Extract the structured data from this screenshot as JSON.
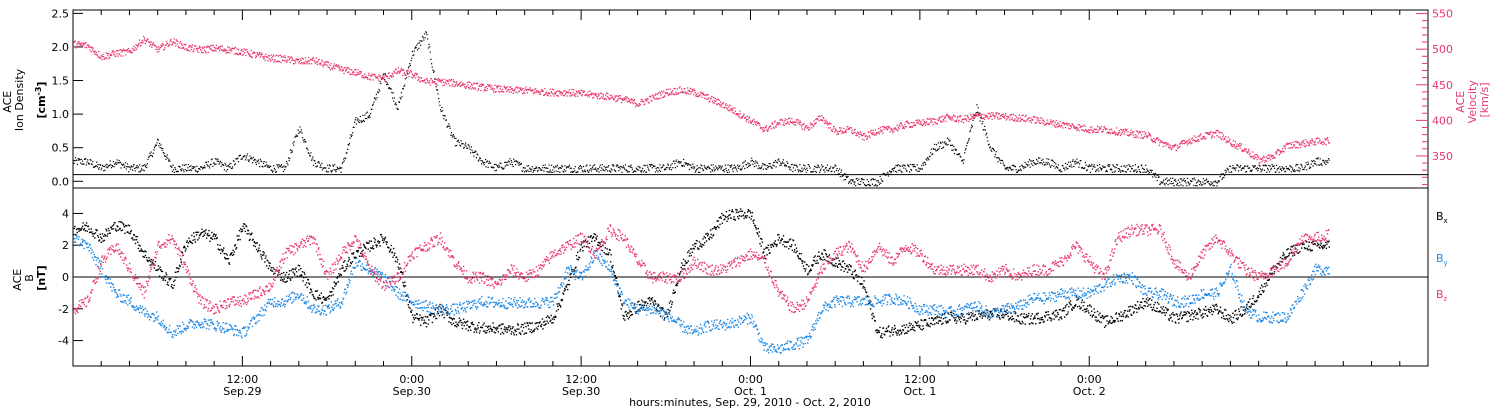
{
  "chart_data": [
    {
      "type": "scatter",
      "title": "",
      "xlabel": "",
      "ylabel": "ACE Ion Density [cm-3]",
      "ylabel_lines": [
        "ACE",
        "Ion Density",
        "[cm",
        "-3",
        "]"
      ],
      "y2label": "ACE Velocity [km/s]",
      "y2label_lines": [
        "ACE",
        "Velocity",
        "[km/s]"
      ],
      "xlim_hours": [
        0,
        96
      ],
      "ylim": [
        -0.1,
        2.55
      ],
      "y2lim": [
        305,
        555
      ],
      "yticks": [
        "0.0",
        "0.5",
        "1.0",
        "1.5",
        "2.0",
        "2.5"
      ],
      "yticks_values": [
        0.0,
        0.5,
        1.0,
        1.5,
        2.0,
        2.5
      ],
      "y2ticks": [
        "350",
        "400",
        "450",
        "500",
        "550"
      ],
      "y2ticks_values": [
        350,
        400,
        450,
        500,
        550
      ],
      "reference_line": 0.1,
      "series": [
        {
          "name": "Ion Density",
          "axis": "left",
          "color": "#000000",
          "x_hours": [
            0,
            1,
            2,
            3,
            4,
            5,
            6,
            7,
            8,
            9,
            10,
            11,
            12,
            13,
            14,
            15,
            16,
            17,
            18,
            19,
            20,
            21,
            22,
            23,
            24,
            25,
            26,
            27,
            28,
            29,
            30,
            31,
            32,
            33,
            34,
            35,
            36,
            37,
            38,
            39,
            40,
            41,
            42,
            43,
            44,
            45,
            46,
            47,
            48,
            49,
            50,
            51,
            52,
            53,
            54,
            55,
            56,
            57,
            58,
            59,
            60,
            61,
            62,
            63,
            64,
            65,
            66,
            67,
            68,
            69,
            70,
            71,
            72,
            73,
            74,
            75,
            76,
            77,
            78,
            79,
            80,
            81,
            82,
            83,
            84,
            85,
            86,
            87,
            88,
            89
          ],
          "values": [
            0.3,
            0.3,
            0.2,
            0.3,
            0.2,
            0.2,
            0.6,
            0.2,
            0.2,
            0.2,
            0.3,
            0.2,
            0.4,
            0.3,
            0.2,
            0.2,
            0.8,
            0.3,
            0.2,
            0.2,
            0.9,
            1.0,
            1.6,
            1.1,
            1.9,
            2.2,
            1.1,
            0.6,
            0.5,
            0.3,
            0.2,
            0.3,
            0.2,
            0.2,
            0.2,
            0.2,
            0.2,
            0.2,
            0.2,
            0.2,
            0.2,
            0.2,
            0.2,
            0.3,
            0.2,
            0.2,
            0.2,
            0.2,
            0.3,
            0.2,
            0.3,
            0.2,
            0.2,
            0.2,
            0.2,
            0.0,
            0.0,
            0.0,
            0.2,
            0.2,
            0.2,
            0.5,
            0.6,
            0.3,
            1.1,
            0.5,
            0.2,
            0.2,
            0.3,
            0.3,
            0.2,
            0.3,
            0.2,
            0.2,
            0.2,
            0.2,
            0.2,
            0.0,
            0.0,
            0.0,
            0.0,
            0.0,
            0.2,
            0.2,
            0.2,
            0.2,
            0.2,
            0.2,
            0.3,
            0.3
          ]
        },
        {
          "name": "Velocity",
          "axis": "right",
          "color": "#e8386b",
          "x_hours": [
            0,
            1,
            2,
            3,
            4,
            5,
            6,
            7,
            8,
            9,
            10,
            11,
            12,
            13,
            14,
            15,
            16,
            17,
            18,
            19,
            20,
            21,
            22,
            23,
            24,
            25,
            26,
            27,
            28,
            29,
            30,
            31,
            32,
            33,
            34,
            35,
            36,
            37,
            38,
            39,
            40,
            41,
            42,
            43,
            44,
            45,
            46,
            47,
            48,
            49,
            50,
            51,
            52,
            53,
            54,
            55,
            56,
            57,
            58,
            59,
            60,
            61,
            62,
            63,
            64,
            65,
            66,
            67,
            68,
            69,
            70,
            71,
            72,
            73,
            74,
            75,
            76,
            77,
            78,
            79,
            80,
            81,
            82,
            83,
            84,
            85,
            86,
            87,
            88,
            89
          ],
          "values": [
            508,
            506,
            490,
            495,
            497,
            515,
            500,
            512,
            503,
            500,
            502,
            500,
            497,
            492,
            488,
            487,
            483,
            485,
            478,
            472,
            468,
            462,
            460,
            470,
            465,
            455,
            455,
            453,
            450,
            447,
            445,
            443,
            443,
            441,
            440,
            440,
            438,
            436,
            434,
            430,
            424,
            432,
            440,
            443,
            440,
            432,
            423,
            412,
            400,
            388,
            398,
            400,
            390,
            405,
            385,
            388,
            377,
            387,
            388,
            395,
            397,
            400,
            405,
            402,
            407,
            407,
            406,
            404,
            402,
            398,
            395,
            392,
            388,
            388,
            385,
            382,
            380,
            370,
            362,
            372,
            378,
            383,
            370,
            360,
            345,
            350,
            365,
            368,
            371,
            372
          ]
        }
      ]
    },
    {
      "type": "scatter",
      "title": "",
      "xlabel": "hours:minutes, Sep. 29, 2010 - Oct. 2, 2010",
      "ylabel": "ACE B [nT]",
      "ylabel_lines": [
        "ACE",
        "B",
        "[nT]"
      ],
      "xlim_hours": [
        0,
        96
      ],
      "ylim": [
        -5.6,
        5.6
      ],
      "yticks": [
        "4",
        "2",
        "0",
        "-2",
        "-4"
      ],
      "yticks_values": [
        4,
        2,
        0,
        -2,
        -4
      ],
      "reference_line": 0,
      "legend_position": "right",
      "x_ticks": [
        {
          "hour": 12,
          "time": "12:00",
          "date": "Sep.29"
        },
        {
          "hour": 24,
          "time": "0:00",
          "date": "Sep.30"
        },
        {
          "hour": 36,
          "time": "12:00",
          "date": "Sep.30"
        },
        {
          "hour": 48,
          "time": "0:00",
          "date": "Oct. 1"
        },
        {
          "hour": 60,
          "time": "12:00",
          "date": "Oct. 1"
        },
        {
          "hour": 72,
          "time": "0:00",
          "date": "Oct. 2"
        }
      ],
      "series": [
        {
          "name": "Bx",
          "label_main": "B",
          "label_sub": "x",
          "color": "#000000",
          "x_hours": [
            0,
            1,
            2,
            3,
            4,
            5,
            6,
            7,
            8,
            9,
            10,
            11,
            12,
            13,
            14,
            15,
            16,
            17,
            18,
            19,
            20,
            21,
            22,
            23,
            24,
            25,
            26,
            27,
            28,
            29,
            30,
            31,
            32,
            33,
            34,
            35,
            36,
            37,
            38,
            39,
            40,
            41,
            42,
            43,
            44,
            45,
            46,
            47,
            48,
            49,
            50,
            51,
            52,
            53,
            54,
            55,
            56,
            57,
            58,
            59,
            60,
            61,
            62,
            63,
            64,
            65,
            66,
            67,
            68,
            69,
            70,
            71,
            72,
            73,
            74,
            75,
            76,
            77,
            78,
            79,
            80,
            81,
            82,
            83,
            84,
            85,
            86,
            87,
            88,
            89
          ],
          "values": [
            3.0,
            3.2,
            2.5,
            3.3,
            3.0,
            1.5,
            0.5,
            -0.5,
            2.2,
            2.8,
            2.5,
            1.0,
            3.2,
            2.0,
            0.5,
            0.0,
            0.5,
            -1.0,
            -1.5,
            0.5,
            1.5,
            2.0,
            2.5,
            1.0,
            -2.5,
            -2.8,
            -2.0,
            -2.8,
            -3.0,
            -3.2,
            -3.2,
            -3.3,
            -3.2,
            -3.0,
            -2.5,
            -0.5,
            2.0,
            2.5,
            1.5,
            -2.5,
            -1.8,
            -1.5,
            -2.5,
            0.5,
            2.0,
            2.5,
            3.8,
            4.0,
            4.0,
            1.5,
            2.5,
            2.0,
            0.5,
            1.5,
            1.0,
            0.5,
            -0.5,
            -3.5,
            -3.3,
            -3.2,
            -3.0,
            -2.8,
            -2.5,
            -2.6,
            -2.4,
            -2.3,
            -2.3,
            -2.6,
            -2.6,
            -2.4,
            -2.3,
            -1.5,
            -2.0,
            -2.8,
            -2.5,
            -2.0,
            -1.5,
            -2.0,
            -2.6,
            -2.4,
            -2.2,
            -2.0,
            -2.6,
            -2.0,
            -1.0,
            0.5,
            1.5,
            2.0,
            2.0,
            2.0
          ]
        },
        {
          "name": "By",
          "label_main": "B",
          "label_sub": "y",
          "color": "#1e88e5",
          "x_hours": [
            0,
            1,
            2,
            3,
            4,
            5,
            6,
            7,
            8,
            9,
            10,
            11,
            12,
            13,
            14,
            15,
            16,
            17,
            18,
            19,
            20,
            21,
            22,
            23,
            24,
            25,
            26,
            27,
            28,
            29,
            30,
            31,
            32,
            33,
            34,
            35,
            36,
            37,
            38,
            39,
            40,
            41,
            42,
            43,
            44,
            45,
            46,
            47,
            48,
            49,
            50,
            51,
            52,
            53,
            54,
            55,
            56,
            57,
            58,
            59,
            60,
            61,
            62,
            63,
            64,
            65,
            66,
            67,
            68,
            69,
            70,
            71,
            72,
            73,
            74,
            75,
            76,
            77,
            78,
            79,
            80,
            81,
            82,
            83,
            84,
            85,
            86,
            87,
            88,
            89
          ],
          "values": [
            2.5,
            2.0,
            0.5,
            -1.0,
            -1.5,
            -2.2,
            -2.5,
            -3.5,
            -3.0,
            -2.8,
            -3.0,
            -3.2,
            -3.5,
            -2.5,
            -1.5,
            -1.5,
            -1.0,
            -2.0,
            -2.0,
            -1.5,
            1.0,
            0.5,
            0.0,
            -1.0,
            -1.5,
            -1.8,
            -2.0,
            -2.0,
            -1.8,
            -1.5,
            -1.6,
            -1.6,
            -1.6,
            -1.6,
            -1.5,
            0.5,
            0.0,
            1.5,
            0.5,
            -1.5,
            -2.0,
            -2.0,
            -2.3,
            -3.0,
            -3.5,
            -3.0,
            -3.0,
            -2.8,
            -2.5,
            -4.5,
            -4.5,
            -4.2,
            -4.0,
            -2.0,
            -1.5,
            -1.5,
            -1.5,
            -1.5,
            -1.3,
            -1.5,
            -2.0,
            -2.0,
            -2.2,
            -2.0,
            -1.8,
            -2.3,
            -2.0,
            -1.8,
            -1.3,
            -1.3,
            -1.0,
            -1.0,
            -1.0,
            -0.5,
            0.0,
            0.0,
            -1.0,
            -1.0,
            -1.5,
            -1.5,
            -1.0,
            -1.0,
            0.5,
            -2.0,
            -2.5,
            -2.5,
            -2.5,
            -1.0,
            0.5,
            0.5
          ]
        },
        {
          "name": "Bz",
          "label_main": "B",
          "label_sub": "z",
          "color": "#e8386b",
          "x_hours": [
            0,
            1,
            2,
            3,
            4,
            5,
            6,
            7,
            8,
            9,
            10,
            11,
            12,
            13,
            14,
            15,
            16,
            17,
            18,
            19,
            20,
            21,
            22,
            23,
            24,
            25,
            26,
            27,
            28,
            29,
            30,
            31,
            32,
            33,
            34,
            35,
            36,
            37,
            38,
            39,
            40,
            41,
            42,
            43,
            44,
            45,
            46,
            47,
            48,
            49,
            50,
            51,
            52,
            53,
            54,
            55,
            56,
            57,
            58,
            59,
            60,
            61,
            62,
            63,
            64,
            65,
            66,
            67,
            68,
            69,
            70,
            71,
            72,
            73,
            74,
            75,
            76,
            77,
            78,
            79,
            80,
            81,
            82,
            83,
            84,
            85,
            86,
            87,
            88,
            89
          ],
          "values": [
            -2.0,
            -1.5,
            1.0,
            2.0,
            0.5,
            -1.0,
            2.0,
            2.5,
            0.5,
            -1.5,
            -2.0,
            -1.5,
            -1.5,
            -1.0,
            -0.5,
            1.5,
            2.0,
            2.5,
            0.0,
            1.5,
            2.5,
            0.5,
            -0.5,
            0.0,
            1.5,
            2.0,
            2.5,
            1.0,
            0.0,
            0.0,
            -0.5,
            0.5,
            0.0,
            0.5,
            1.5,
            2.0,
            2.5,
            1.5,
            3.0,
            2.5,
            1.0,
            0.0,
            0.0,
            0.0,
            1.0,
            0.5,
            0.5,
            1.0,
            1.5,
            1.0,
            -1.0,
            -2.0,
            -1.5,
            0.5,
            1.5,
            2.0,
            0.5,
            2.0,
            1.0,
            2.0,
            1.5,
            0.5,
            0.5,
            0.5,
            0.5,
            0.0,
            0.5,
            0.0,
            0.5,
            0.5,
            1.0,
            2.0,
            1.0,
            0.0,
            2.5,
            3.0,
            3.0,
            3.0,
            1.0,
            0.0,
            1.5,
            2.5,
            1.5,
            0.5,
            0.0,
            0.5,
            1.0,
            2.5,
            2.5,
            2.7
          ]
        }
      ]
    }
  ]
}
